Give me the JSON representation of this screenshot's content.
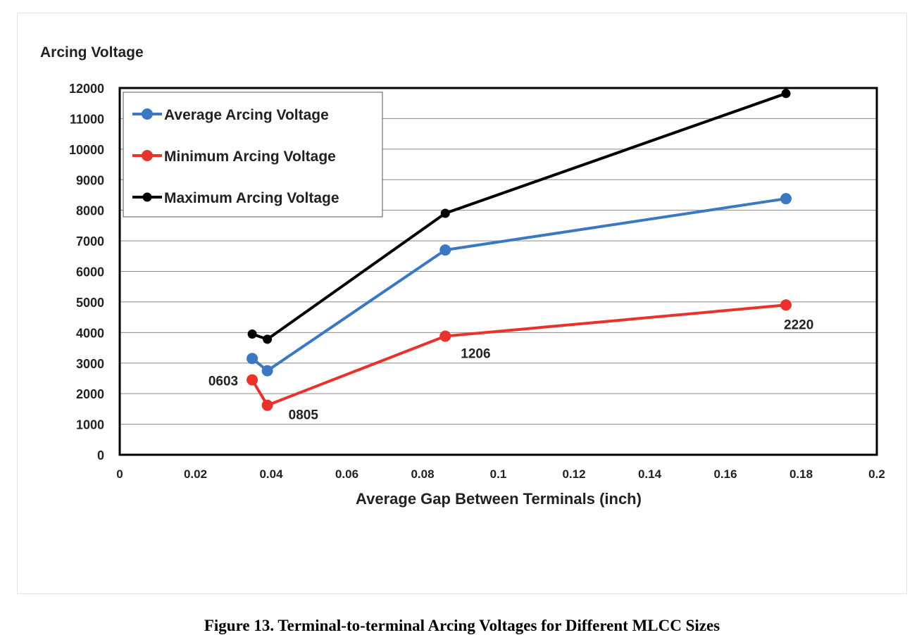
{
  "caption": "Figure 13. Terminal-to-terminal Arcing Voltages for Different MLCC Sizes",
  "chart_data": {
    "type": "line",
    "title": "",
    "xlabel": "Average Gap Between Terminals (inch)",
    "ylabel": "Arcing Voltage",
    "xlim": [
      0,
      0.2
    ],
    "ylim": [
      0,
      12000
    ],
    "x_ticks": [
      "0",
      "0.02",
      "0.04",
      "0.06",
      "0.08",
      "0.1",
      "0.12",
      "0.14",
      "0.16",
      "0.18",
      "0.2"
    ],
    "y_ticks": [
      "0",
      "1000",
      "2000",
      "3000",
      "4000",
      "5000",
      "6000",
      "7000",
      "8000",
      "9000",
      "10000",
      "11000",
      "12000"
    ],
    "grid": "horizontal",
    "legend_position": "top-left",
    "series": [
      {
        "name": "Average Arcing Voltage",
        "color": "#3a78c3",
        "x": [
          0.035,
          0.039,
          0.086,
          0.176
        ],
        "y": [
          3150,
          2750,
          6700,
          8380
        ]
      },
      {
        "name": "Minimum Arcing Voltage",
        "color": "#e8322b",
        "x": [
          0.035,
          0.039,
          0.086,
          0.176
        ],
        "y": [
          2450,
          1620,
          3880,
          4900
        ]
      },
      {
        "name": "Maximum Arcing Voltage",
        "color": "#000000",
        "x": [
          0.035,
          0.039,
          0.086,
          0.176
        ],
        "y": [
          3950,
          3780,
          7900,
          11820
        ]
      }
    ],
    "annotations": [
      {
        "text": "0603",
        "x": 0.035,
        "y": 2450
      },
      {
        "text": "0805",
        "x": 0.039,
        "y": 1620
      },
      {
        "text": "1206",
        "x": 0.086,
        "y": 3880
      },
      {
        "text": "2220",
        "x": 0.176,
        "y": 4900
      }
    ]
  }
}
